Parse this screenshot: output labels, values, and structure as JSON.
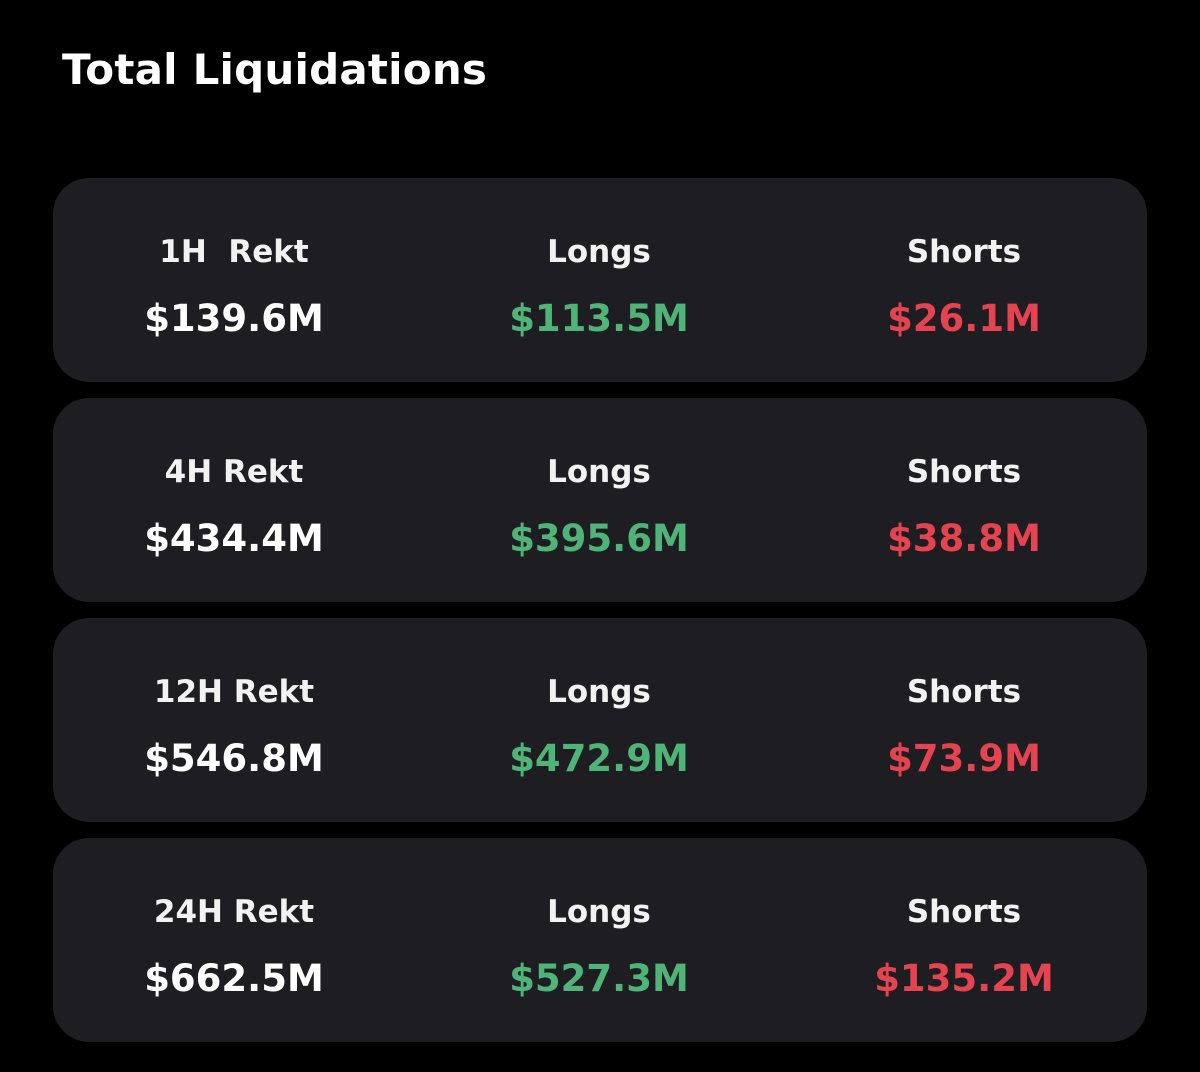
{
  "title": "Total Liquidations",
  "colors": {
    "background": "#000000",
    "card": "#1e1e22",
    "long": "#4fb477",
    "short": "#e5434f",
    "text": "#ffffff"
  },
  "rows": [
    {
      "period_label": "1H  Rekt",
      "total": "$139.6M",
      "longs_label": "Longs",
      "longs": "$113.5M",
      "shorts_label": "Shorts",
      "shorts": "$26.1M"
    },
    {
      "period_label": "4H Rekt",
      "total": "$434.4M",
      "longs_label": "Longs",
      "longs": "$395.6M",
      "shorts_label": "Shorts",
      "shorts": "$38.8M"
    },
    {
      "period_label": "12H Rekt",
      "total": "$546.8M",
      "longs_label": "Longs",
      "longs": "$472.9M",
      "shorts_label": "Shorts",
      "shorts": "$73.9M"
    },
    {
      "period_label": "24H Rekt",
      "total": "$662.5M",
      "longs_label": "Longs",
      "longs": "$527.3M",
      "shorts_label": "Shorts",
      "shorts": "$135.2M"
    }
  ]
}
